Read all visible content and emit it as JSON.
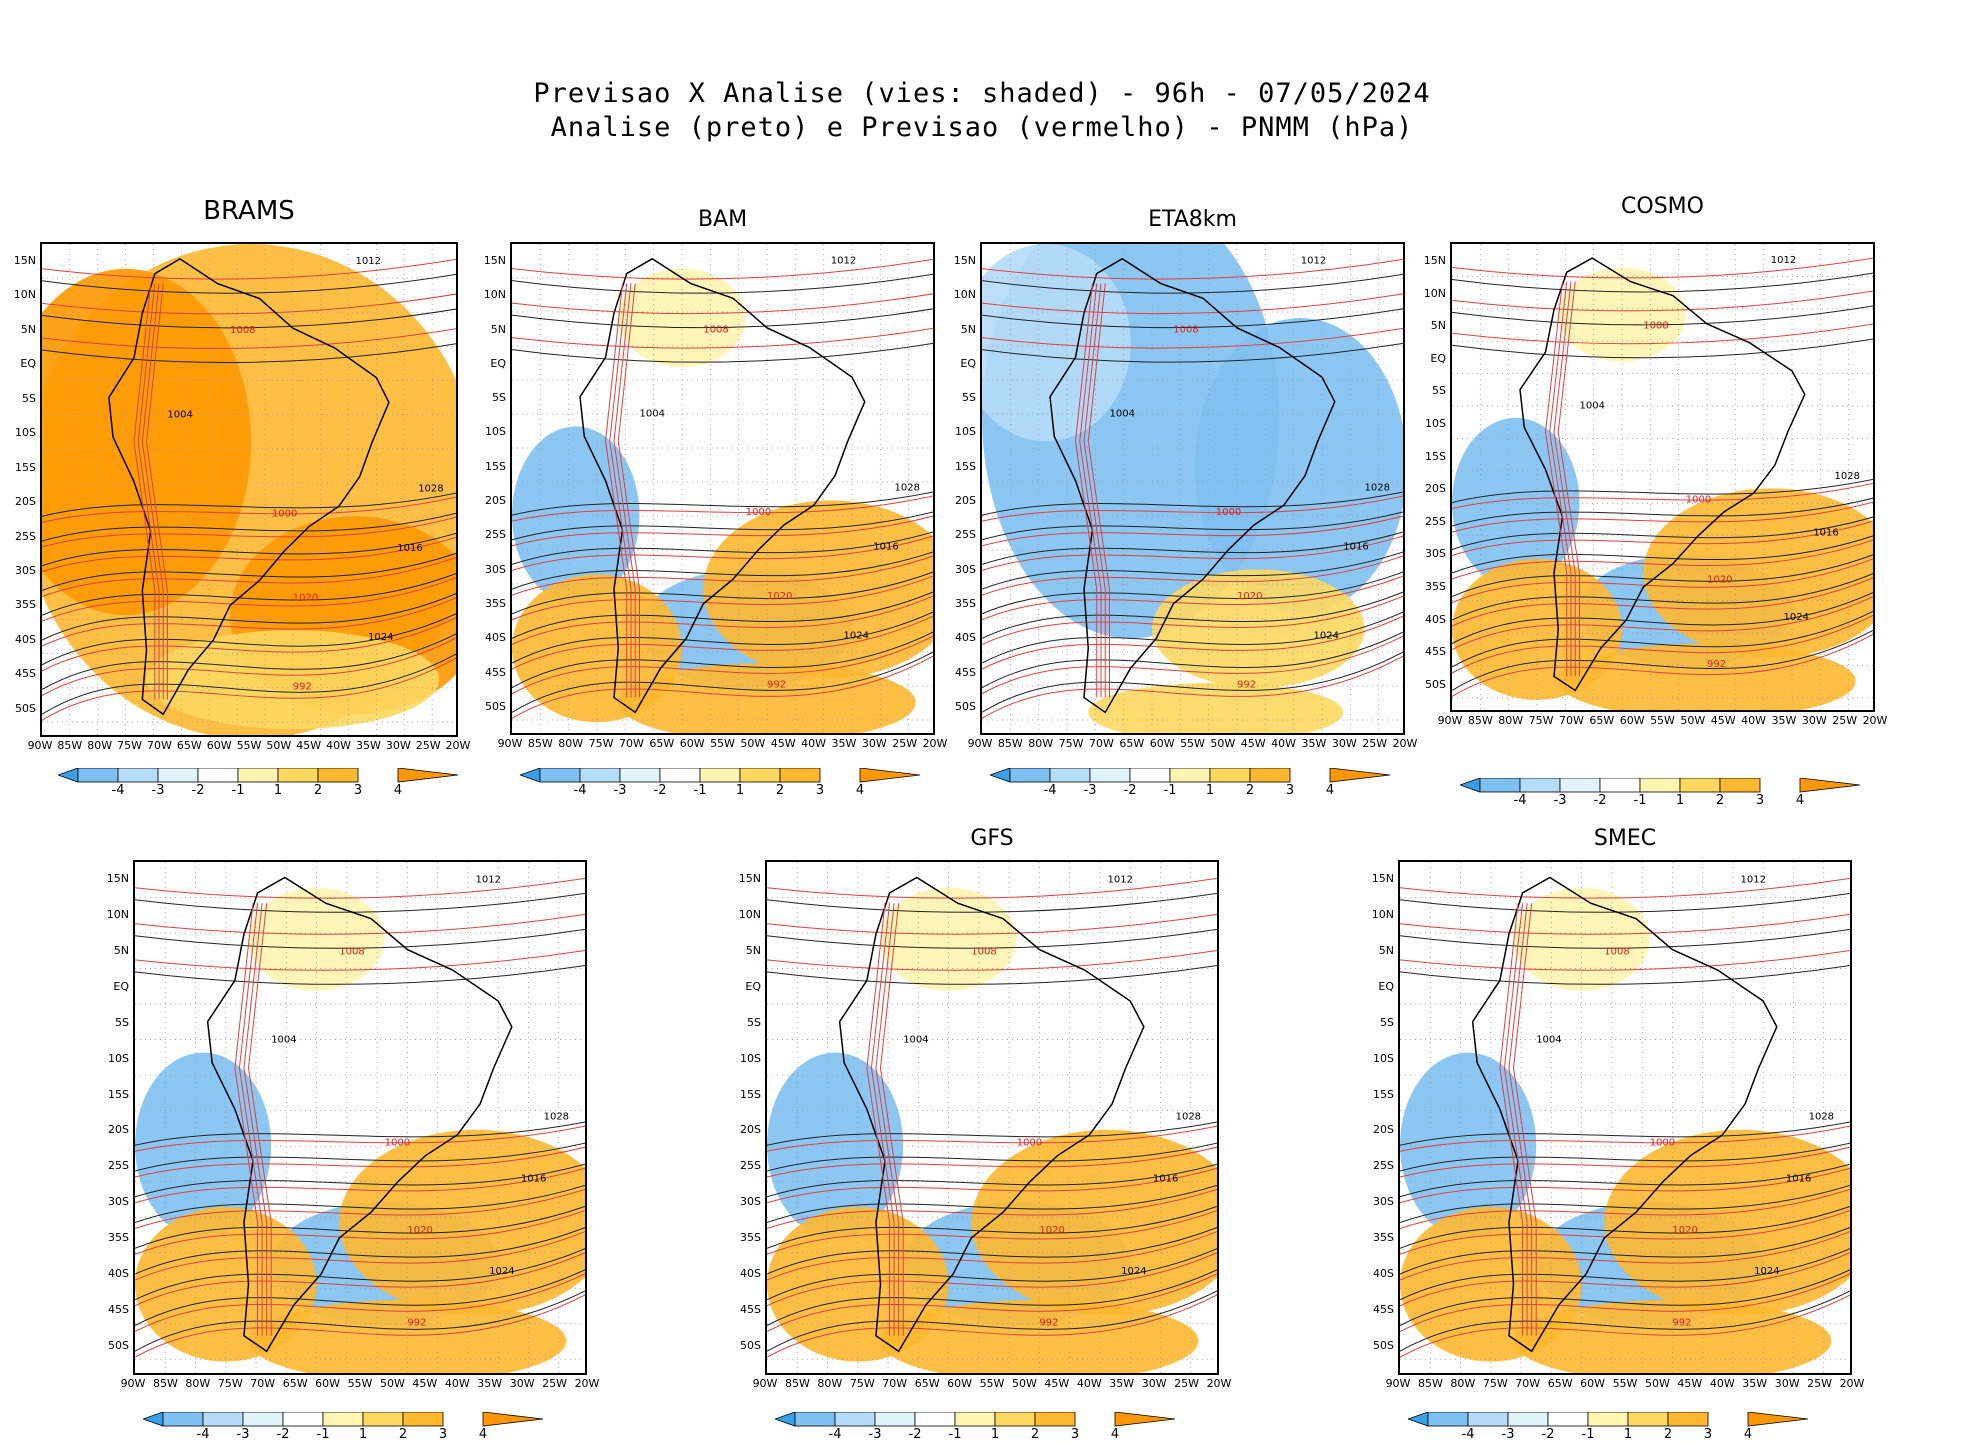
{
  "header": {
    "line1": "Previsao X Analise (vies: shaded) - 96h - 07/05/2024",
    "line2": "Analise (preto) e Previsao (vermelho) - PNMM (hPa)"
  },
  "axes": {
    "lat_labels": [
      "15N",
      "10N",
      "5N",
      "EQ",
      "5S",
      "10S",
      "15S",
      "20S",
      "25S",
      "30S",
      "35S",
      "40S",
      "45S",
      "50S"
    ],
    "lon_labels": [
      "90W",
      "85W",
      "80W",
      "75W",
      "70W",
      "65W",
      "60W",
      "55W",
      "50W",
      "45W",
      "40W",
      "35W",
      "30W",
      "25W",
      "20W"
    ]
  },
  "colorbar": {
    "ticks": [
      "-4",
      "-3",
      "-2",
      "-1",
      "1",
      "2",
      "3",
      "4"
    ],
    "colors": [
      "#3a9ee8",
      "#7fc0f2",
      "#b5dcf8",
      "#dff3fb",
      "#ffffff",
      "#fff4b0",
      "#ffd860",
      "#ffb830",
      "#ff9800"
    ]
  },
  "panels": [
    {
      "title": "BRAMS",
      "bias": "warm"
    },
    {
      "title": "BAM",
      "bias": "mixed"
    },
    {
      "title": "ETA8km",
      "bias": "cold"
    },
    {
      "title": "COSMO",
      "bias": "mixed"
    },
    {
      "title": "",
      "bias": "mixed"
    },
    {
      "title": "GFS",
      "bias": "mixed"
    },
    {
      "title": "SMEC",
      "bias": "mixed"
    }
  ],
  "isobar_labels": [
    "1012",
    "1008",
    "1004",
    "1000",
    "1016",
    "1020",
    "1024",
    "992",
    "1028"
  ]
}
